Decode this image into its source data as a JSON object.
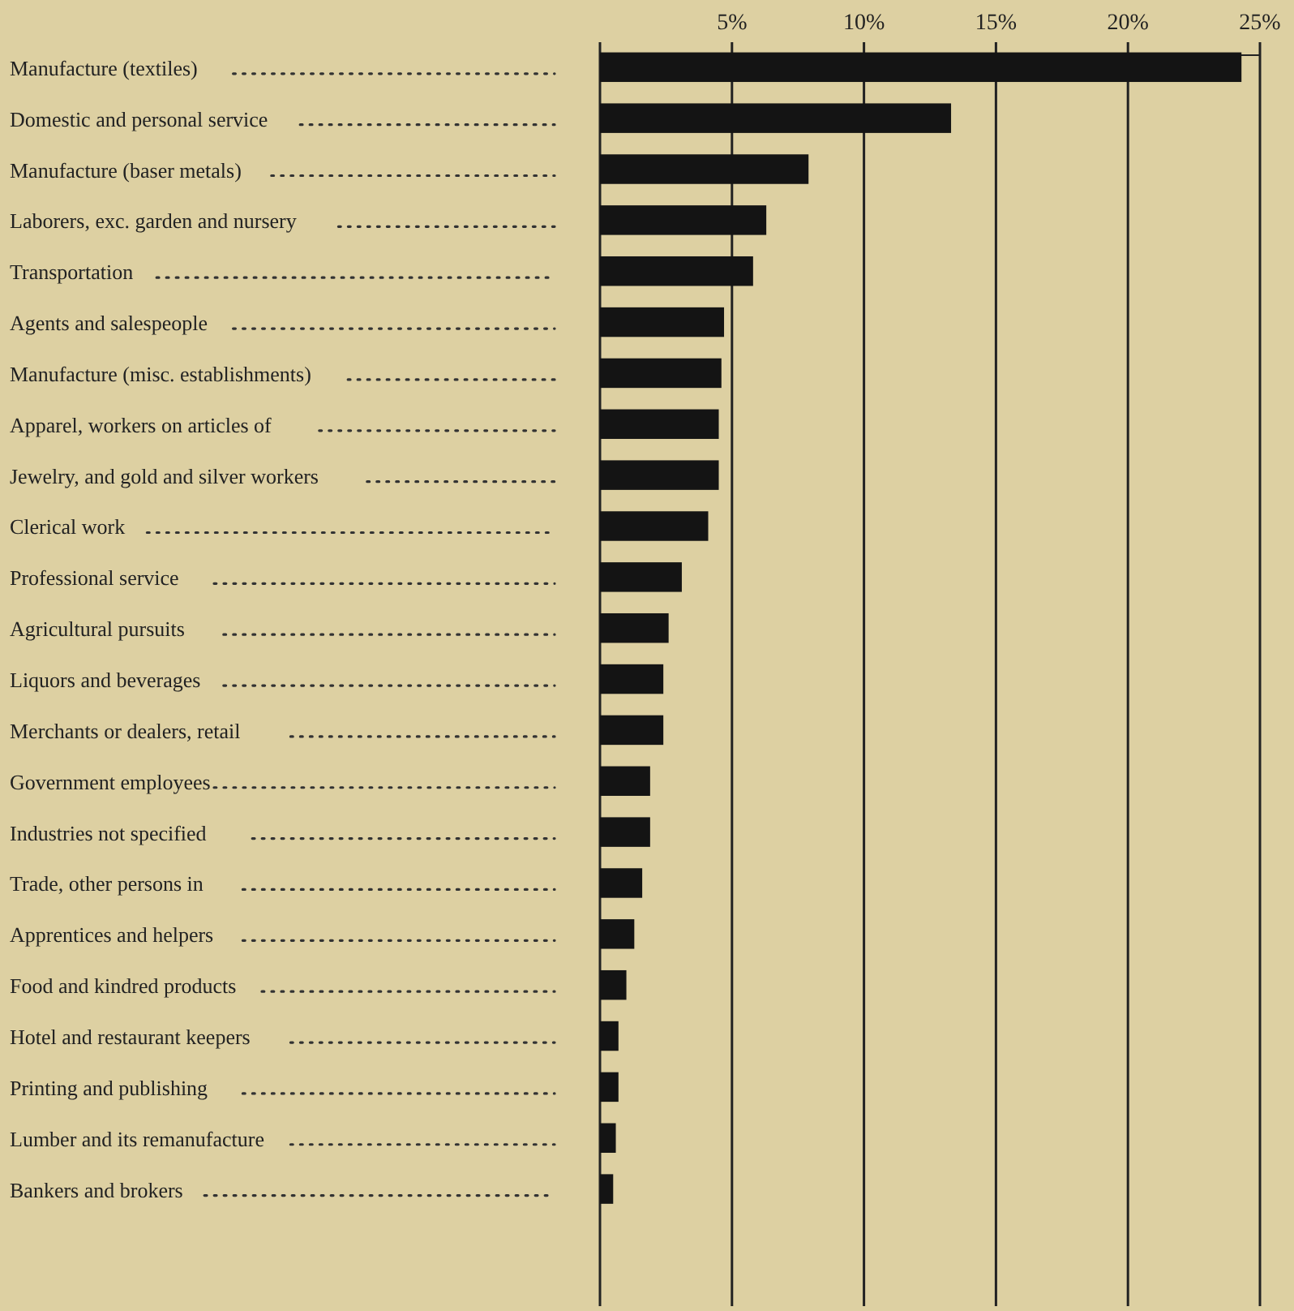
{
  "chart_data": {
    "type": "bar",
    "orientation": "horizontal",
    "categories": [
      "Manufacture (textiles)",
      "Domestic and personal service",
      "Manufacture (baser metals)",
      "Laborers, exc. garden and nursery",
      "Transportation",
      "Agents and salespeople",
      "Manufacture (misc. establishments)",
      "Apparel, workers on articles of",
      "Jewelry, and gold and silver workers",
      "Clerical work",
      "Professional service",
      "Agricultural pursuits",
      "Liquors and beverages",
      "Merchants or dealers, retail",
      "Government employees",
      "Industries not specified",
      "Trade, other persons in",
      "Apprentices and helpers",
      "Food and kindred products",
      "Hotel and restaurant keepers",
      "Printing and publishing",
      "Lumber and its remanufacture",
      "Bankers and brokers"
    ],
    "series": [
      {
        "axis": "x2",
        "color": "#141414",
        "values": [
          24.3,
          13.3,
          7.9,
          6.3,
          5.8,
          4.7,
          4.6,
          4.5,
          4.5,
          4.1,
          3.1,
          2.6,
          2.4,
          2.4,
          1.9,
          1.9,
          1.6,
          1.3,
          1.0,
          0.7,
          0.7,
          0.6,
          0.5
        ]
      }
    ],
    "x2lim": [
      0,
      25
    ],
    "x2ticks": [
      {
        "value": 5,
        "label": "5%"
      },
      {
        "value": 10,
        "label": "10%"
      },
      {
        "value": 15,
        "label": "15%"
      },
      {
        "value": 20,
        "label": "20%"
      },
      {
        "value": 25,
        "label": "25%"
      }
    ],
    "grid": "x"
  }
}
